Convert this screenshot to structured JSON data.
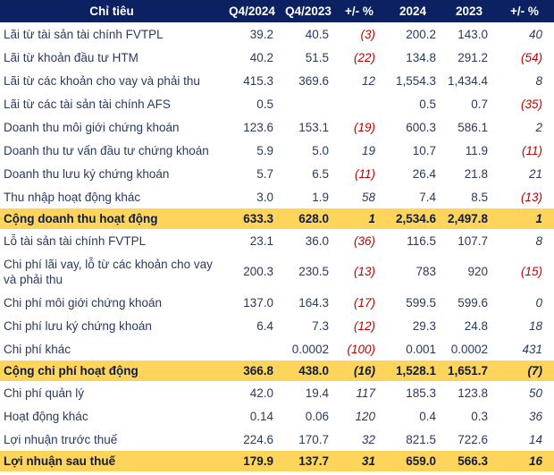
{
  "colors": {
    "header_bg": "#0b2161",
    "header_text": "#ffffff",
    "body_text": "#2a3a5c",
    "negative": "#c00000",
    "highlight_bg": "#ffd45a"
  },
  "table": {
    "headers": [
      "Chỉ tiêu",
      "Q4/2024",
      "Q4/2023",
      "+/- %",
      "2024",
      "2023",
      "+/- %"
    ],
    "rows": [
      {
        "label": "Lãi từ tài sản tài chính FVTPL",
        "q4_2024": "39.2",
        "q4_2023": "40.5",
        "pct_q": "(3)",
        "y2024": "200.2",
        "y2023": "143.0",
        "pct_y": "40",
        "highlight": false
      },
      {
        "label": "Lãi từ khoản đầu tư HTM",
        "q4_2024": "40.2",
        "q4_2023": "51.5",
        "pct_q": "(22)",
        "y2024": "134.8",
        "y2023": "291.2",
        "pct_y": "(54)",
        "highlight": false
      },
      {
        "label": "Lãi từ các khoản cho vay và phải thu",
        "q4_2024": "415.3",
        "q4_2023": "369.6",
        "pct_q": "12",
        "y2024": "1,554.3",
        "y2023": "1,434.4",
        "pct_y": "8",
        "highlight": false
      },
      {
        "label": "Lãi từ các tài sản tài chính AFS",
        "q4_2024": "0.5",
        "q4_2023": "",
        "pct_q": "",
        "y2024": "0.5",
        "y2023": "0.7",
        "pct_y": "(35)",
        "highlight": false
      },
      {
        "label": "Doanh thu môi giới chứng khoán",
        "q4_2024": "123.6",
        "q4_2023": "153.1",
        "pct_q": "(19)",
        "y2024": "600.3",
        "y2023": "586.1",
        "pct_y": "2",
        "highlight": false
      },
      {
        "label": "Doanh thu tư vấn đầu tư chứng khoán",
        "q4_2024": "5.9",
        "q4_2023": "5.0",
        "pct_q": "19",
        "y2024": "10.7",
        "y2023": "11.9",
        "pct_y": "(11)",
        "highlight": false
      },
      {
        "label": "Doanh thu lưu ký chứng khoán",
        "q4_2024": "5.7",
        "q4_2023": "6.5",
        "pct_q": "(11)",
        "y2024": "26.4",
        "y2023": "21.8",
        "pct_y": "21",
        "highlight": false
      },
      {
        "label": "Thu nhập hoạt động khác",
        "q4_2024": "3.0",
        "q4_2023": "1.9",
        "pct_q": "58",
        "y2024": "7.4",
        "y2023": "8.5",
        "pct_y": "(13)",
        "highlight": false
      },
      {
        "label": "Cộng doanh thu hoạt động",
        "q4_2024": "633.3",
        "q4_2023": "628.0",
        "pct_q": "1",
        "y2024": "2,534.6",
        "y2023": "2,497.8",
        "pct_y": "1",
        "highlight": true
      },
      {
        "label": "Lỗ tài sản tài chính FVTPL",
        "q4_2024": "23.1",
        "q4_2023": "36.0",
        "pct_q": "(36)",
        "y2024": "116.5",
        "y2023": "107.7",
        "pct_y": "8",
        "highlight": false
      },
      {
        "label": "Chi phí lãi vay, lỗ từ các khoản cho vay và phải thu",
        "q4_2024": "200.3",
        "q4_2023": "230.5",
        "pct_q": "(13)",
        "y2024": "783",
        "y2023": "920",
        "pct_y": "(15)",
        "highlight": false
      },
      {
        "label": "Chi phí môi giới chứng khoán",
        "q4_2024": "137.0",
        "q4_2023": "164.3",
        "pct_q": "(17)",
        "y2024": "599.5",
        "y2023": "599.6",
        "pct_y": "0",
        "highlight": false
      },
      {
        "label": "Chi phí lưu ký chứng khoán",
        "q4_2024": "6.4",
        "q4_2023": "7.3",
        "pct_q": "(12)",
        "y2024": "29.3",
        "y2023": "24.8",
        "pct_y": "18",
        "highlight": false
      },
      {
        "label": "Chi phí khác",
        "q4_2024": "",
        "q4_2023": "0.0002",
        "pct_q": "(100)",
        "y2024": "0.001",
        "y2023": "0.0002",
        "pct_y": "431",
        "highlight": false
      },
      {
        "label": "Cộng chi phí hoạt động",
        "q4_2024": "366.8",
        "q4_2023": "438.0",
        "pct_q": "(16)",
        "y2024": "1,528.1",
        "y2023": "1,651.7",
        "pct_y": "(7)",
        "highlight": true
      },
      {
        "label": "Chi phí quản lý",
        "q4_2024": "42.0",
        "q4_2023": "19.4",
        "pct_q": "117",
        "y2024": "185.3",
        "y2023": "123.8",
        "pct_y": "50",
        "highlight": false
      },
      {
        "label": "Hoạt động khác",
        "q4_2024": "0.14",
        "q4_2023": "0.06",
        "pct_q": "120",
        "y2024": "0.4",
        "y2023": "0.3",
        "pct_y": "36",
        "highlight": false
      },
      {
        "label": "Lợi nhuận trước thuế",
        "q4_2024": "224.6",
        "q4_2023": "170.7",
        "pct_q": "32",
        "y2024": "821.5",
        "y2023": "722.6",
        "pct_y": "14",
        "highlight": false
      },
      {
        "label": "Lợi nhuận sau thuế",
        "q4_2024": "179.9",
        "q4_2023": "137.7",
        "pct_q": "31",
        "y2024": "659.0",
        "y2023": "566.3",
        "pct_y": "16",
        "highlight": true
      }
    ]
  }
}
